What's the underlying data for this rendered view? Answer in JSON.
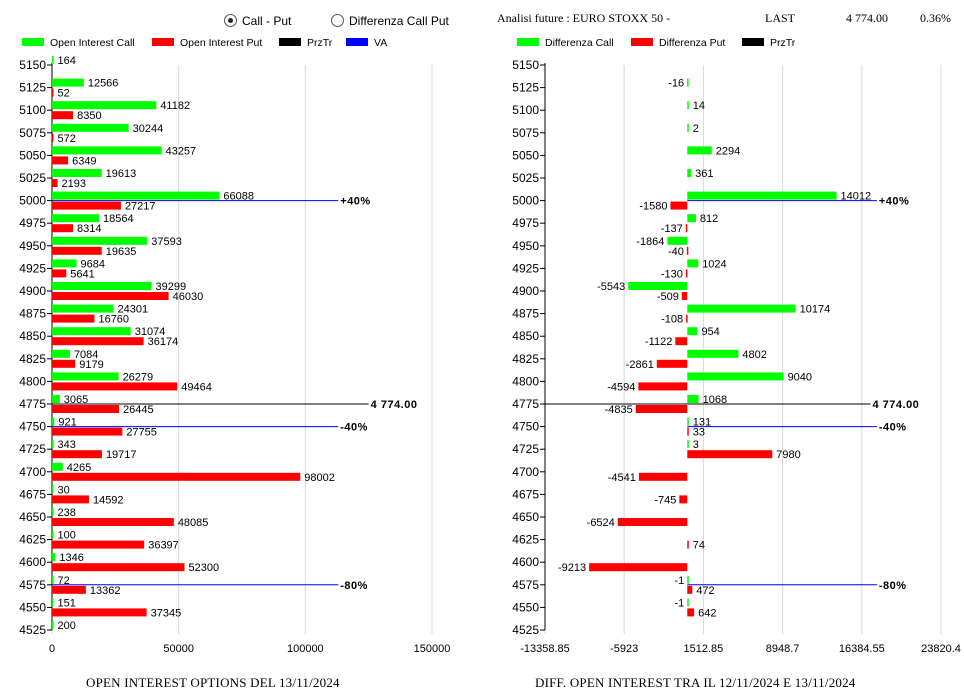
{
  "controls": {
    "radio_options": [
      {
        "label": "Call - Put",
        "selected": true
      },
      {
        "label": "Differenza Call Put",
        "selected": false
      }
    ]
  },
  "header": {
    "title": "Analisi future : EURO STOXX 50 -",
    "last_label": "LAST",
    "last_value": "4 774.00",
    "change": "0.36%"
  },
  "colors": {
    "call": "#00ff00",
    "put": "#ff0000",
    "prztr": "#000000",
    "va": "#0000ff",
    "grid": "#d8d8d8"
  },
  "chart_data": [
    {
      "type": "bar",
      "orientation": "horizontal",
      "title": "OPEN INTEREST OPTIONS DEL 13/11/2024",
      "legend": [
        "Open Interest Call",
        "Open Interest Put",
        "PrzTr",
        "VA"
      ],
      "categories": [
        5150,
        5125,
        5100,
        5075,
        5050,
        5025,
        5000,
        4975,
        4950,
        4925,
        4900,
        4875,
        4850,
        4825,
        4800,
        4775,
        4750,
        4725,
        4700,
        4675,
        4650,
        4625,
        4600,
        4575,
        4550,
        4525
      ],
      "series": [
        {
          "name": "Open Interest Call",
          "values": [
            164,
            12566,
            41182,
            30244,
            43257,
            19613,
            66088,
            18564,
            37593,
            9684,
            39299,
            24301,
            31074,
            7084,
            26279,
            3065,
            921,
            343,
            4265,
            30,
            238,
            100,
            1346,
            72,
            151,
            200
          ]
        },
        {
          "name": "Open Interest Put",
          "values": [
            null,
            52,
            8350,
            572,
            6349,
            2193,
            27217,
            8314,
            19635,
            5641,
            46030,
            16760,
            36174,
            9179,
            49464,
            26445,
            27755,
            19717,
            98002,
            14592,
            48085,
            36397,
            52300,
            13362,
            37345,
            null
          ]
        }
      ],
      "xlim": [
        0,
        150000
      ],
      "x_ticks": [
        "0",
        "50000",
        "100000",
        "150000"
      ],
      "reference_lines": [
        {
          "name": "PrzTr",
          "strike": 4775,
          "label": "4 774.00",
          "end": 125000
        },
        {
          "name": "VA",
          "strike": 5000,
          "label": "+40%",
          "end": 113000
        },
        {
          "name": "VA",
          "strike": 4750,
          "label": "-40%",
          "end": 113000
        },
        {
          "name": "VA",
          "strike": 4575,
          "label": "-80%",
          "end": 113000
        }
      ]
    },
    {
      "type": "bar",
      "orientation": "horizontal",
      "title": "DIFF. OPEN INTEREST TRA IL 12/11/2024 E 13/11/2024",
      "legend": [
        "Differenza Call",
        "Differenza Put",
        "PrzTr"
      ],
      "categories": [
        5150,
        5125,
        5100,
        5075,
        5050,
        5025,
        5000,
        4975,
        4950,
        4925,
        4900,
        4875,
        4850,
        4825,
        4800,
        4775,
        4750,
        4725,
        4700,
        4675,
        4650,
        4625,
        4600,
        4575,
        4550,
        4525
      ],
      "series": [
        {
          "name": "Differenza Call",
          "values": [
            null,
            -16,
            14,
            2,
            2294,
            361,
            14012,
            812,
            -1864,
            1024,
            -5543,
            10174,
            954,
            4802,
            9040,
            1068,
            131,
            3,
            null,
            null,
            null,
            null,
            null,
            -1,
            -1,
            null
          ]
        },
        {
          "name": "Differenza Put",
          "values": [
            null,
            null,
            null,
            null,
            null,
            null,
            -1580,
            -137,
            -40,
            -130,
            -509,
            -108,
            -1122,
            -2861,
            -4594,
            -4835,
            33,
            7980,
            -4541,
            -745,
            -6524,
            74,
            -9213,
            472,
            642,
            null
          ]
        }
      ],
      "xlim": [
        -13358.85,
        23820.4
      ],
      "x_ticks": [
        "-13358.85",
        "-5923",
        "1512.85",
        "8948.7",
        "16384.55",
        "23820.4"
      ],
      "reference_lines": [
        {
          "name": "PrzTr",
          "strike": 4775,
          "label": "4 774.00",
          "start": -13358.85,
          "end": 17200
        },
        {
          "name": "VA",
          "strike": 5000,
          "label": "+40%",
          "start": 0,
          "end": 17800
        },
        {
          "name": "VA",
          "strike": 4750,
          "label": "-40%",
          "start": 0,
          "end": 17800
        },
        {
          "name": "VA",
          "strike": 4575,
          "label": "-80%",
          "start": 0,
          "end": 17800
        }
      ]
    }
  ]
}
